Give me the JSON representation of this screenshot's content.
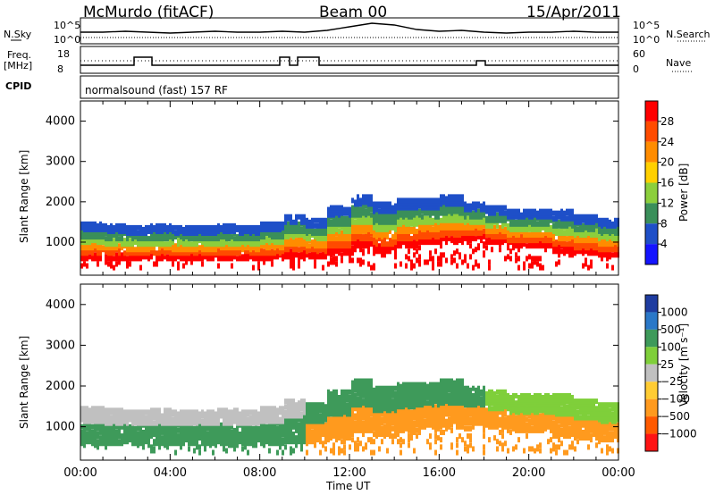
{
  "header": {
    "site_title": "McMurdo (fitACF)",
    "beam": "Beam 00",
    "date": "15/Apr/2011"
  },
  "top_panels": {
    "nsky_label": "N.Sky",
    "nsky_ticks": [
      "10^5",
      "10^0"
    ],
    "nsearch_label": "N.Search",
    "nsearch_ticks": [
      "10^5",
      "10^0"
    ],
    "freq_label": "Freq.",
    "freq_unit": "[MHz]",
    "freq_ticks": [
      "18",
      "8"
    ],
    "nave_label": "Nave",
    "nave_ticks": [
      "60",
      "0"
    ],
    "cpid_label": "CPID",
    "cpid_text": "normalsound (fast) 157 RF"
  },
  "chart_data": [
    {
      "type": "heatmap",
      "panel": "power",
      "ylabel": "Slant Range [km]",
      "y_ticks": [
        "1000",
        "2000",
        "3000",
        "4000"
      ],
      "ylim": [
        180,
        4500
      ],
      "x_ticks": [
        "00:00",
        "04:00",
        "08:00",
        "12:00",
        "16:00",
        "20:00",
        "00:00"
      ],
      "xlim_hours": [
        0,
        24
      ],
      "colorbar_label": "Power [dB]",
      "colorbar_ticks": [
        "28",
        "24",
        "20",
        "16",
        "12",
        "8",
        "4"
      ],
      "colorbar_colors": [
        "#ff0000",
        "#ff4b00",
        "#ff8c00",
        "#ffd000",
        "#8ccf3c",
        "#3a8f5a",
        "#1e4fc8",
        "#1414ff"
      ],
      "colorbar_range": [
        0,
        32
      ]
    },
    {
      "type": "heatmap",
      "panel": "velocity",
      "ylabel": "Slant Range [km]",
      "y_ticks": [
        "1000",
        "2000",
        "3000",
        "4000"
      ],
      "ylim": [
        180,
        4500
      ],
      "x_ticks": [
        "00:00",
        "04:00",
        "08:00",
        "12:00",
        "16:00",
        "20:00",
        "00:00"
      ],
      "xlim_hours": [
        0,
        24
      ],
      "xlabel": "Time UT",
      "colorbar_label": "Velocity [m s⁻¹]",
      "colorbar_ticks": [
        "1000",
        "500",
        "100",
        "25",
        "−25",
        "−100",
        "−500",
        "−1000"
      ],
      "colorbar_colors": [
        "#1e3ca0",
        "#2a78c8",
        "#3e9a5a",
        "#7fcf3a",
        "#c0c0c0",
        "#ffcc33",
        "#ff9a1e",
        "#ff5a00",
        "#ff1414"
      ]
    }
  ]
}
